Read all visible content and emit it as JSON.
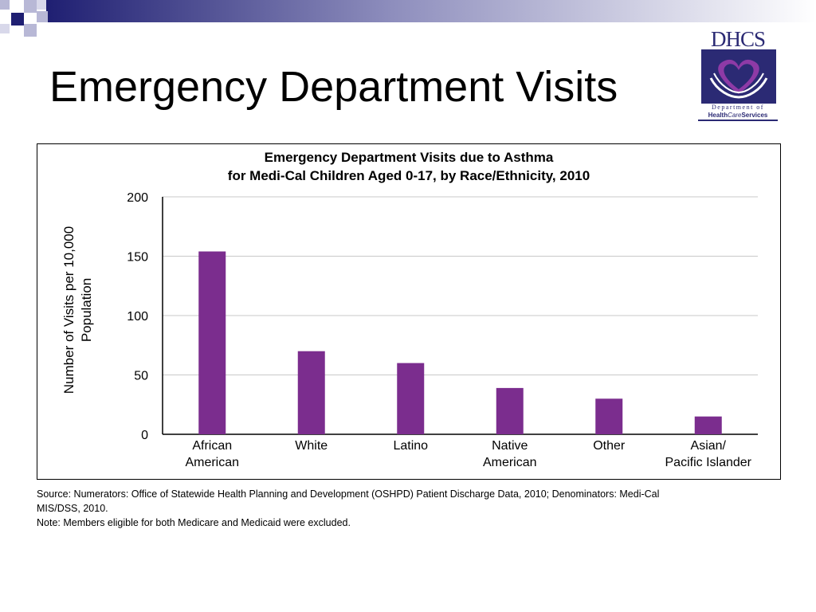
{
  "slide": {
    "title": "Emergency Department Visits"
  },
  "logo": {
    "name": "DHCS",
    "dept_line": "Department of",
    "agency_health": "Health",
    "agency_care": "Care",
    "agency_services": "Services"
  },
  "colors": {
    "bar": "#7b2d8e",
    "band_dark": "#1f1f72",
    "band_light": "#9a9ac4",
    "logo_navy": "#2b2a74",
    "logo_purple": "#8e3aa6"
  },
  "chart_data": {
    "type": "bar",
    "title_line1": "Emergency Department Visits due to Asthma",
    "title_line2": "for Medi-Cal Children Aged 0-17, by Race/Ethnicity, 2010",
    "ylabel_line1": "Number of Visits per 10,000",
    "ylabel_line2": "Population",
    "xlabel": "",
    "categories": [
      [
        "African",
        "American"
      ],
      [
        "White"
      ],
      [
        "Latino"
      ],
      [
        "Native",
        "American"
      ],
      [
        "Other"
      ],
      [
        "Asian/",
        "Pacific Islander"
      ]
    ],
    "values": [
      154,
      70,
      60,
      39,
      30,
      15
    ],
    "ylim": [
      0,
      200
    ],
    "yticks": [
      0,
      50,
      100,
      150,
      200
    ],
    "grid": true,
    "legend": "none"
  },
  "footnote": {
    "source_line1": "Source: Numerators: Office of Statewide Health Planning and Development (OSHPD) Patient Discharge Data, 2010; Denominators: Medi-Cal",
    "source_line2": "MIS/DSS, 2010.",
    "note": "Note: Members eligible for both Medicare and Medicaid were excluded."
  }
}
